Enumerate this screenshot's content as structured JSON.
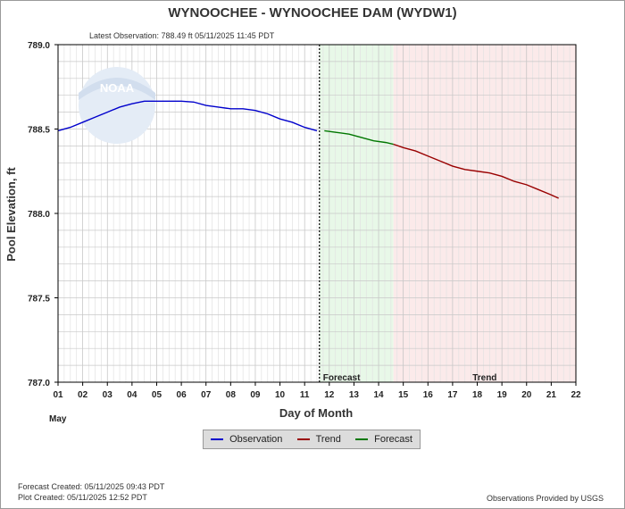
{
  "chart_data": {
    "type": "line",
    "title": "WYNOOCHEE - WYNOOCHEE DAM  (WYDW1)",
    "subtitle": "Latest Observation: 788.49 ft 05/11/2025 11:45 PDT",
    "xlabel": "Day of Month",
    "x_month_label": "May",
    "ylabel": "Pool Elevation, ft",
    "xlim": [
      1,
      22
    ],
    "ylim": [
      787.0,
      789.0
    ],
    "x_ticks": [
      "01",
      "02",
      "03",
      "04",
      "05",
      "06",
      "07",
      "08",
      "09",
      "10",
      "11",
      "12",
      "13",
      "14",
      "15",
      "16",
      "17",
      "18",
      "19",
      "20",
      "21",
      "22"
    ],
    "y_ticks": [
      "787.0",
      "787.5",
      "788.0",
      "788.5",
      "789.0"
    ],
    "grid": true,
    "legend_placement": "bottom",
    "latest_observation_day": 11.6,
    "regions": [
      {
        "name": "Forecast",
        "from": 11.6,
        "to": 14.6,
        "color": "#e8f8e8"
      },
      {
        "name": "Trend",
        "from": 14.6,
        "to": 22.0,
        "color": "#fbeaea"
      }
    ],
    "series": [
      {
        "name": "Observation",
        "color": "#0000cc",
        "x": [
          1.0,
          1.5,
          2.0,
          2.5,
          3.0,
          3.5,
          4.0,
          4.5,
          5.0,
          5.5,
          6.0,
          6.5,
          7.0,
          7.5,
          8.0,
          8.5,
          9.0,
          9.5,
          10.0,
          10.5,
          11.0,
          11.5
        ],
        "y": [
          788.49,
          788.51,
          788.54,
          788.57,
          788.6,
          788.63,
          788.65,
          788.665,
          788.665,
          788.665,
          788.665,
          788.66,
          788.64,
          788.63,
          788.62,
          788.62,
          788.61,
          788.59,
          788.56,
          788.54,
          788.51,
          788.49
        ]
      },
      {
        "name": "Forecast",
        "color": "#007700",
        "x": [
          11.8,
          12.3,
          12.8,
          13.3,
          13.8,
          14.3,
          14.6
        ],
        "y": [
          788.49,
          788.48,
          788.47,
          788.45,
          788.43,
          788.42,
          788.41
        ]
      },
      {
        "name": "Trend",
        "color": "#990000",
        "x": [
          14.6,
          15.0,
          15.5,
          16.0,
          16.5,
          17.0,
          17.5,
          18.0,
          18.5,
          19.0,
          19.5,
          20.0,
          20.5,
          21.0,
          21.3
        ],
        "y": [
          788.41,
          788.39,
          788.37,
          788.34,
          788.31,
          788.28,
          788.26,
          788.25,
          788.24,
          788.22,
          788.19,
          788.17,
          788.14,
          788.11,
          788.09
        ]
      }
    ]
  },
  "legend": {
    "observation": "Observation",
    "trend": "Trend",
    "forecast": "Forecast"
  },
  "footer": {
    "forecast_created": "Forecast Created: 05/11/2025 09:43 PDT",
    "plot_created": "Plot Created: 05/11/2025 12:52 PDT",
    "provider": "Observations Provided by USGS"
  },
  "logo": {
    "text": "NOAA"
  }
}
